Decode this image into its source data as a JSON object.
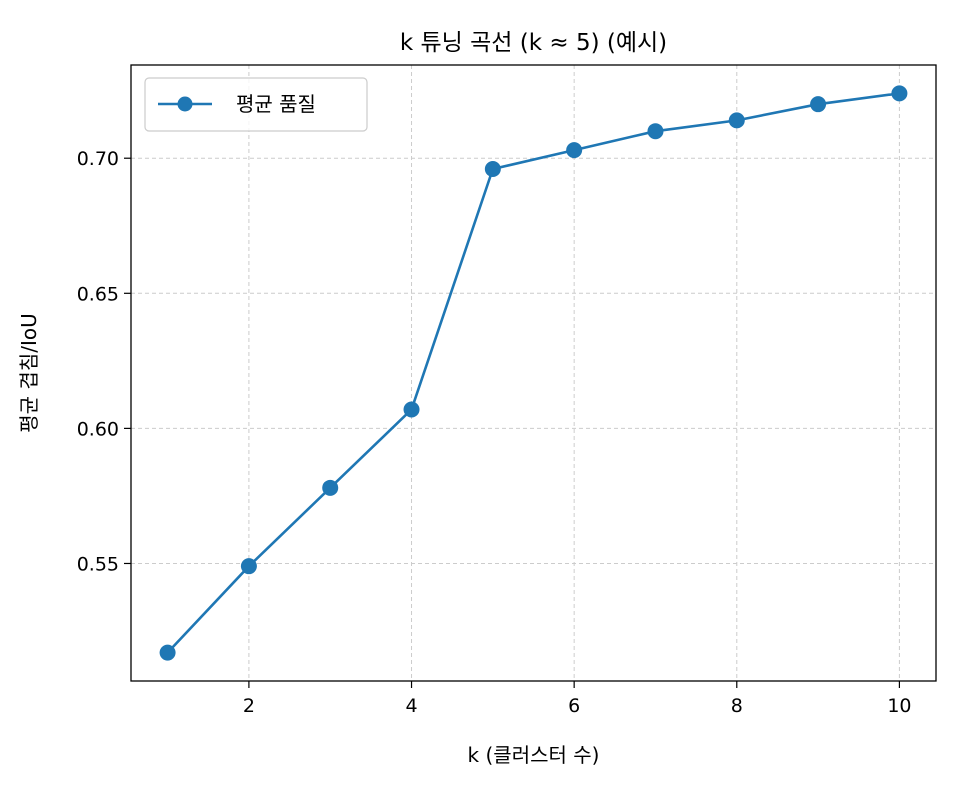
{
  "chart_data": {
    "type": "line",
    "title": "k 튜닝 곡선 (k ≈ 5) (예시)",
    "xlabel": "k (클러스터 수)",
    "ylabel": "평균 겹침/IoU",
    "x": [
      1,
      2,
      3,
      4,
      5,
      6,
      7,
      8,
      9,
      10
    ],
    "series": [
      {
        "name": "평균 품질",
        "color": "#1f77b4",
        "marker": "circle",
        "values": [
          0.517,
          0.549,
          0.578,
          0.607,
          0.696,
          0.703,
          0.71,
          0.714,
          0.72,
          0.724
        ]
      }
    ],
    "xlim": [
      0.55,
      10.45
    ],
    "ylim": [
      0.5065,
      0.7345
    ],
    "xticks": [
      2,
      4,
      6,
      8,
      10
    ],
    "xtick_labels": [
      "2",
      "4",
      "6",
      "8",
      "10"
    ],
    "yticks": [
      0.55,
      0.6,
      0.65,
      0.7
    ],
    "ytick_labels": [
      "0.55",
      "0.60",
      "0.65",
      "0.70"
    ],
    "grid": true,
    "legend_position": "top-left"
  }
}
